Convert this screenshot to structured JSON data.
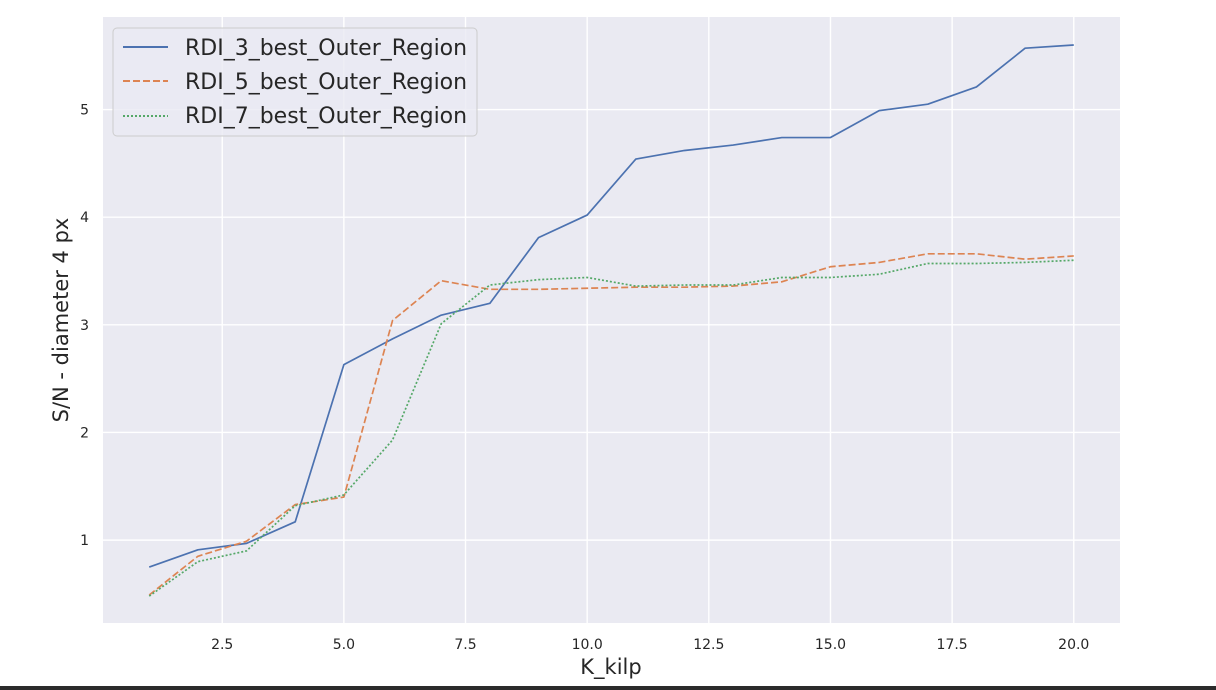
{
  "chart_data": {
    "type": "line",
    "title": "",
    "xlabel": "K_kilp",
    "ylabel": "S/N - diameter 4 px",
    "xlim": [
      0.05,
      20.95
    ],
    "ylim": [
      0.23,
      5.86
    ],
    "xticks": [
      2.5,
      5.0,
      7.5,
      10.0,
      12.5,
      15.0,
      17.5,
      20.0
    ],
    "xtick_labels": [
      "2.5",
      "5.0",
      "7.5",
      "10.0",
      "12.5",
      "15.0",
      "17.5",
      "20.0"
    ],
    "yticks": [
      1,
      2,
      3,
      4,
      5
    ],
    "ytick_labels": [
      "1",
      "2",
      "3",
      "4",
      "5"
    ],
    "grid": true,
    "legend_position": "top-left",
    "background": "#eaeaf2",
    "x": [
      1,
      2,
      3,
      4,
      5,
      6,
      7,
      8,
      9,
      10,
      11,
      12,
      13,
      14,
      15,
      16,
      17,
      18,
      19,
      20
    ],
    "series": [
      {
        "name": "RDI_3_best_Outer_Region",
        "color": "#4c72b0",
        "style": "solid",
        "values": [
          0.75,
          0.91,
          0.97,
          1.17,
          2.63,
          2.87,
          3.09,
          3.2,
          3.81,
          4.02,
          4.54,
          4.62,
          4.67,
          4.74,
          4.74,
          4.99,
          5.05,
          5.21,
          5.57,
          5.6
        ]
      },
      {
        "name": "RDI_5_best_Outer_Region",
        "color": "#dd8452",
        "style": "dashed",
        "values": [
          0.49,
          0.85,
          0.99,
          1.33,
          1.4,
          3.04,
          3.41,
          3.33,
          3.33,
          3.34,
          3.35,
          3.35,
          3.36,
          3.4,
          3.54,
          3.58,
          3.66,
          3.66,
          3.61,
          3.64
        ]
      },
      {
        "name": "RDI_7_best_Outer_Region",
        "color": "#55a868",
        "style": "dotted",
        "values": [
          0.48,
          0.8,
          0.9,
          1.32,
          1.42,
          1.93,
          3.01,
          3.37,
          3.42,
          3.44,
          3.36,
          3.37,
          3.37,
          3.44,
          3.44,
          3.47,
          3.57,
          3.57,
          3.58,
          3.6
        ]
      }
    ]
  }
}
